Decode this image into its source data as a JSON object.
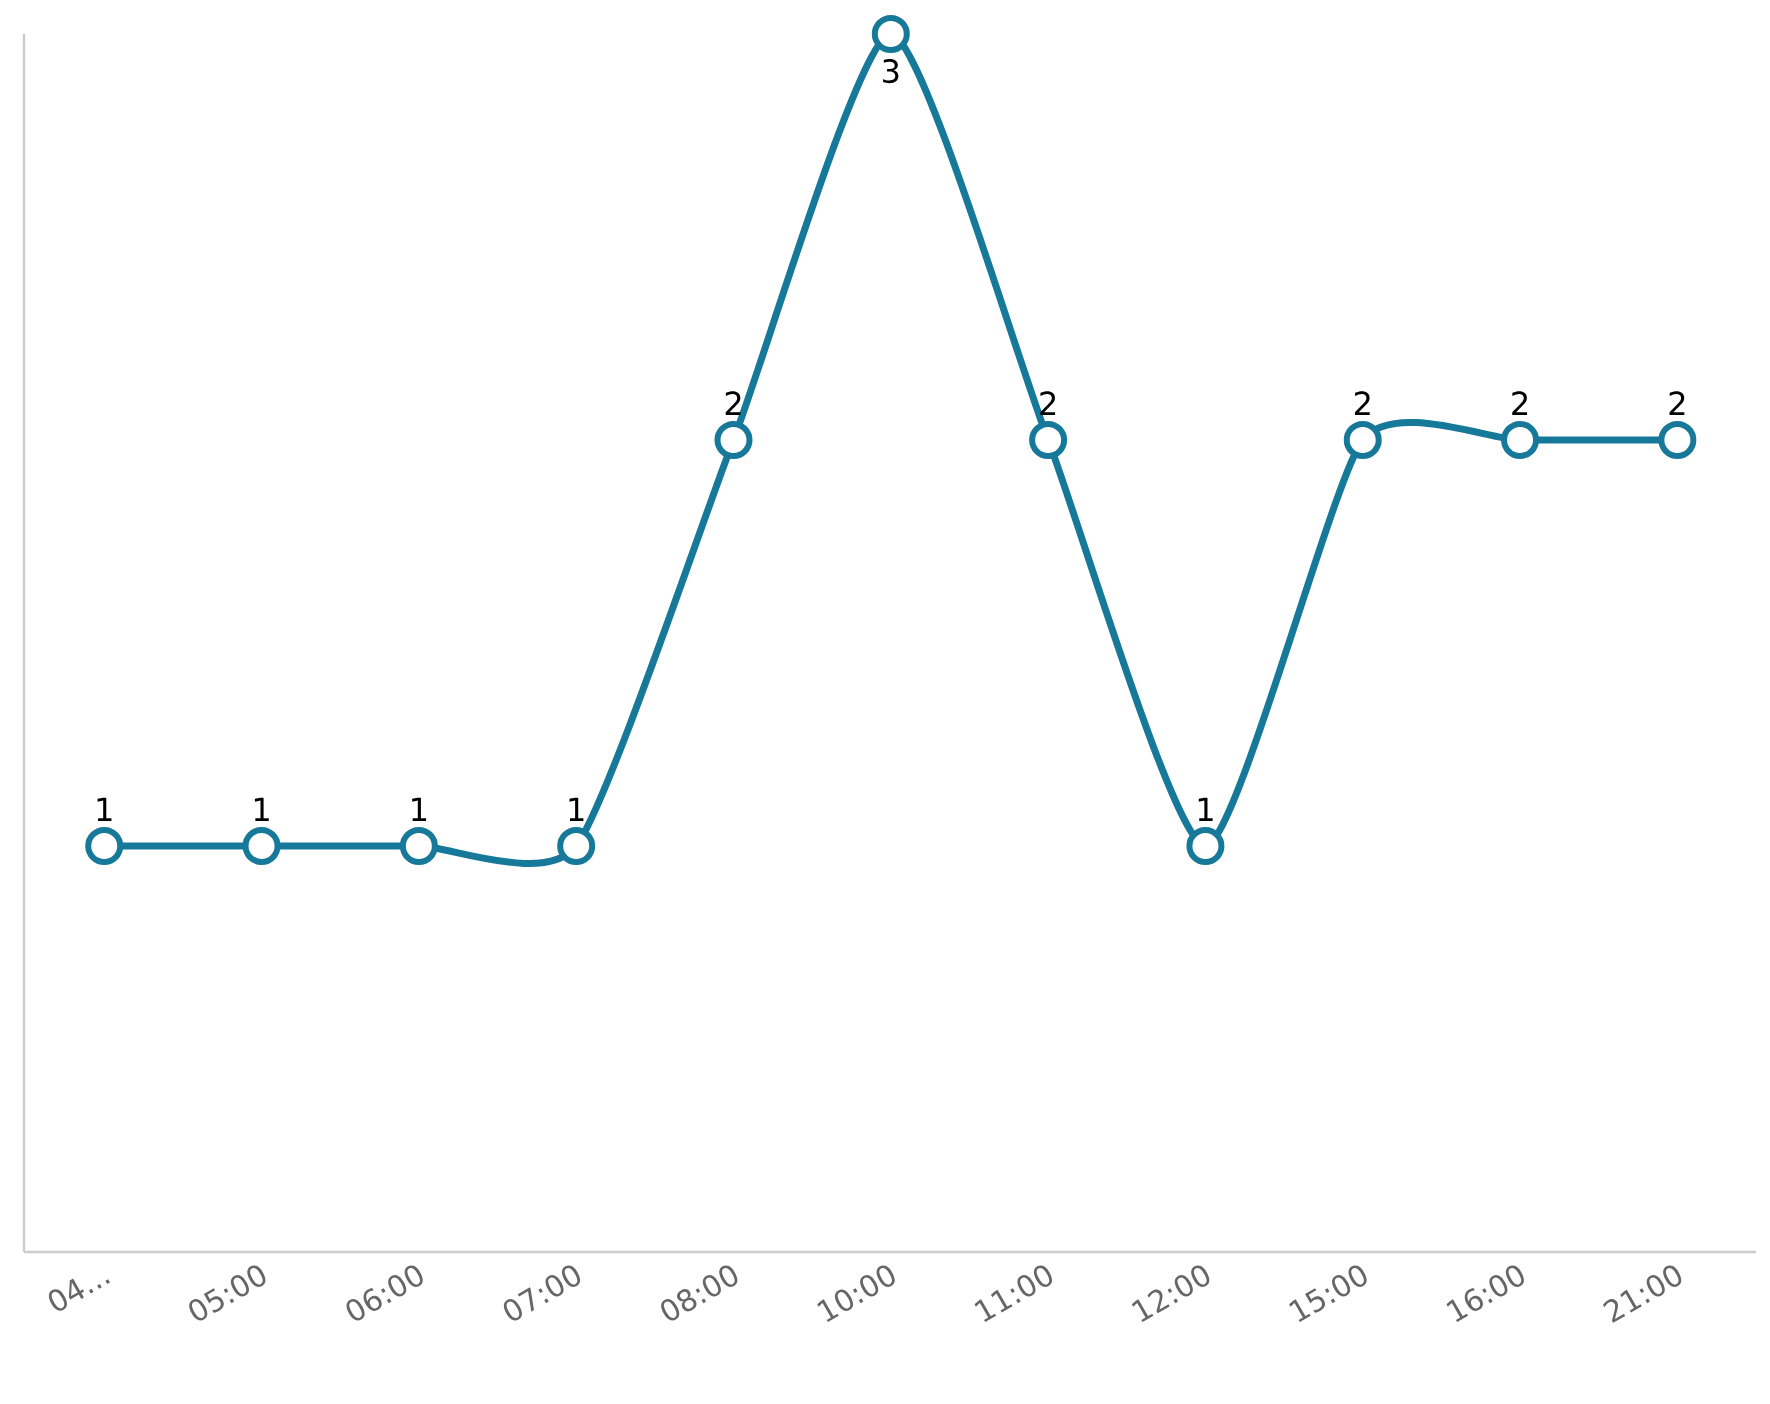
{
  "chart_data": {
    "type": "line",
    "categories": [
      "04...",
      "05:00",
      "06:00",
      "07:00",
      "08:00",
      "10:00",
      "11:00",
      "12:00",
      "15:00",
      "16:00",
      "21:00"
    ],
    "series": [
      {
        "color": "#17799a",
        "values": [
          1,
          1,
          1,
          1,
          2,
          3,
          2,
          1,
          2,
          2,
          2
        ]
      }
    ],
    "ylim": [
      0,
      3
    ],
    "tick_labels": "x",
    "data_labels": true,
    "marker": "circle",
    "line_style": "solid",
    "grid": false
  }
}
